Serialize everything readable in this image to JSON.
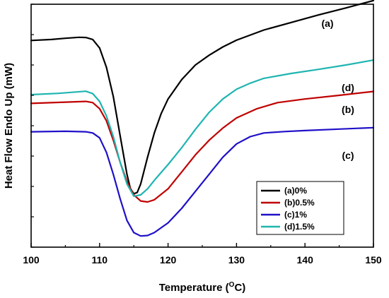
{
  "chart_data": {
    "type": "line",
    "xlabel_main": "Temperature (",
    "xlabel_sup": "O",
    "xlabel_end": "C)",
    "ylabel": "Heat Flow Endo Up (mW)",
    "xlim": [
      100,
      150
    ],
    "ylim": [
      0,
      100
    ],
    "x_ticks": [
      "100",
      "110",
      "120",
      "130",
      "140",
      "150"
    ],
    "grid": false,
    "legend_position": "bottom-right",
    "series": [
      {
        "name": "(a)0%",
        "curve_label": "(a)",
        "color": "#000000",
        "points": [
          [
            100,
            85.1
          ],
          [
            103,
            85.5
          ],
          [
            105,
            86
          ],
          [
            107,
            86.4
          ],
          [
            108,
            86.3
          ],
          [
            109,
            85.5
          ],
          [
            110,
            82
          ],
          [
            111,
            74
          ],
          [
            112,
            62
          ],
          [
            113,
            46
          ],
          [
            114,
            30
          ],
          [
            114.5,
            24
          ],
          [
            115,
            22
          ],
          [
            115.5,
            22.5
          ],
          [
            116,
            26
          ],
          [
            117,
            37
          ],
          [
            118,
            47
          ],
          [
            119,
            55
          ],
          [
            120,
            61
          ],
          [
            122,
            69
          ],
          [
            124,
            75
          ],
          [
            126,
            79
          ],
          [
            128,
            82.4
          ],
          [
            130,
            85.2
          ],
          [
            134,
            89.4
          ],
          [
            138,
            92.5
          ],
          [
            142,
            95.6
          ],
          [
            146,
            98.5
          ],
          [
            150,
            101.5
          ]
        ]
      },
      {
        "name": "(b)0.5%",
        "curve_label": "(b)",
        "color": "#c00000",
        "points": [
          [
            100,
            59.2
          ],
          [
            104,
            59.6
          ],
          [
            108,
            60
          ],
          [
            109,
            59.5
          ],
          [
            110,
            57
          ],
          [
            111,
            52
          ],
          [
            112,
            44
          ],
          [
            113,
            35
          ],
          [
            114,
            27
          ],
          [
            115,
            21.5
          ],
          [
            116,
            19
          ],
          [
            117,
            18.6
          ],
          [
            118,
            19.5
          ],
          [
            120,
            24
          ],
          [
            122,
            31
          ],
          [
            124,
            38
          ],
          [
            126,
            44
          ],
          [
            128,
            49
          ],
          [
            130,
            53.2
          ],
          [
            133,
            57
          ],
          [
            136,
            59.5
          ],
          [
            140,
            61
          ],
          [
            145,
            62.5
          ],
          [
            150,
            64.1
          ]
        ]
      },
      {
        "name": "(c)1%",
        "curve_label": "(c)",
        "color": "#1f10c8",
        "points": [
          [
            100,
            47.5
          ],
          [
            105,
            47.7
          ],
          [
            108,
            47.5
          ],
          [
            109,
            47
          ],
          [
            110,
            45
          ],
          [
            111,
            39
          ],
          [
            112,
            30
          ],
          [
            113,
            20
          ],
          [
            114,
            11
          ],
          [
            115,
            6
          ],
          [
            116,
            4.6
          ],
          [
            117,
            4.8
          ],
          [
            118,
            6
          ],
          [
            120,
            10
          ],
          [
            122,
            16
          ],
          [
            124,
            23
          ],
          [
            126,
            30
          ],
          [
            128,
            37
          ],
          [
            130,
            42.5
          ],
          [
            132,
            45.5
          ],
          [
            134,
            47
          ],
          [
            137,
            47.6
          ],
          [
            140,
            48
          ],
          [
            145,
            48.6
          ],
          [
            150,
            49.2
          ]
        ]
      },
      {
        "name": "(d)1.5%",
        "curve_label": "(d)",
        "color": "#1fb5b0",
        "points": [
          [
            100,
            62.8
          ],
          [
            104,
            63.3
          ],
          [
            108,
            64.2
          ],
          [
            109,
            63.2
          ],
          [
            110,
            60
          ],
          [
            111,
            54
          ],
          [
            112,
            45.5
          ],
          [
            113,
            35
          ],
          [
            114,
            26
          ],
          [
            115,
            21
          ],
          [
            116,
            21.5
          ],
          [
            117,
            24
          ],
          [
            118,
            27.5
          ],
          [
            120,
            34
          ],
          [
            122,
            41
          ],
          [
            124,
            48.5
          ],
          [
            126,
            55.5
          ],
          [
            128,
            61
          ],
          [
            130,
            65
          ],
          [
            132,
            67.5
          ],
          [
            134,
            69.5
          ],
          [
            138,
            71.5
          ],
          [
            142,
            73.2
          ],
          [
            146,
            75
          ],
          [
            150,
            77
          ]
        ]
      }
    ]
  }
}
